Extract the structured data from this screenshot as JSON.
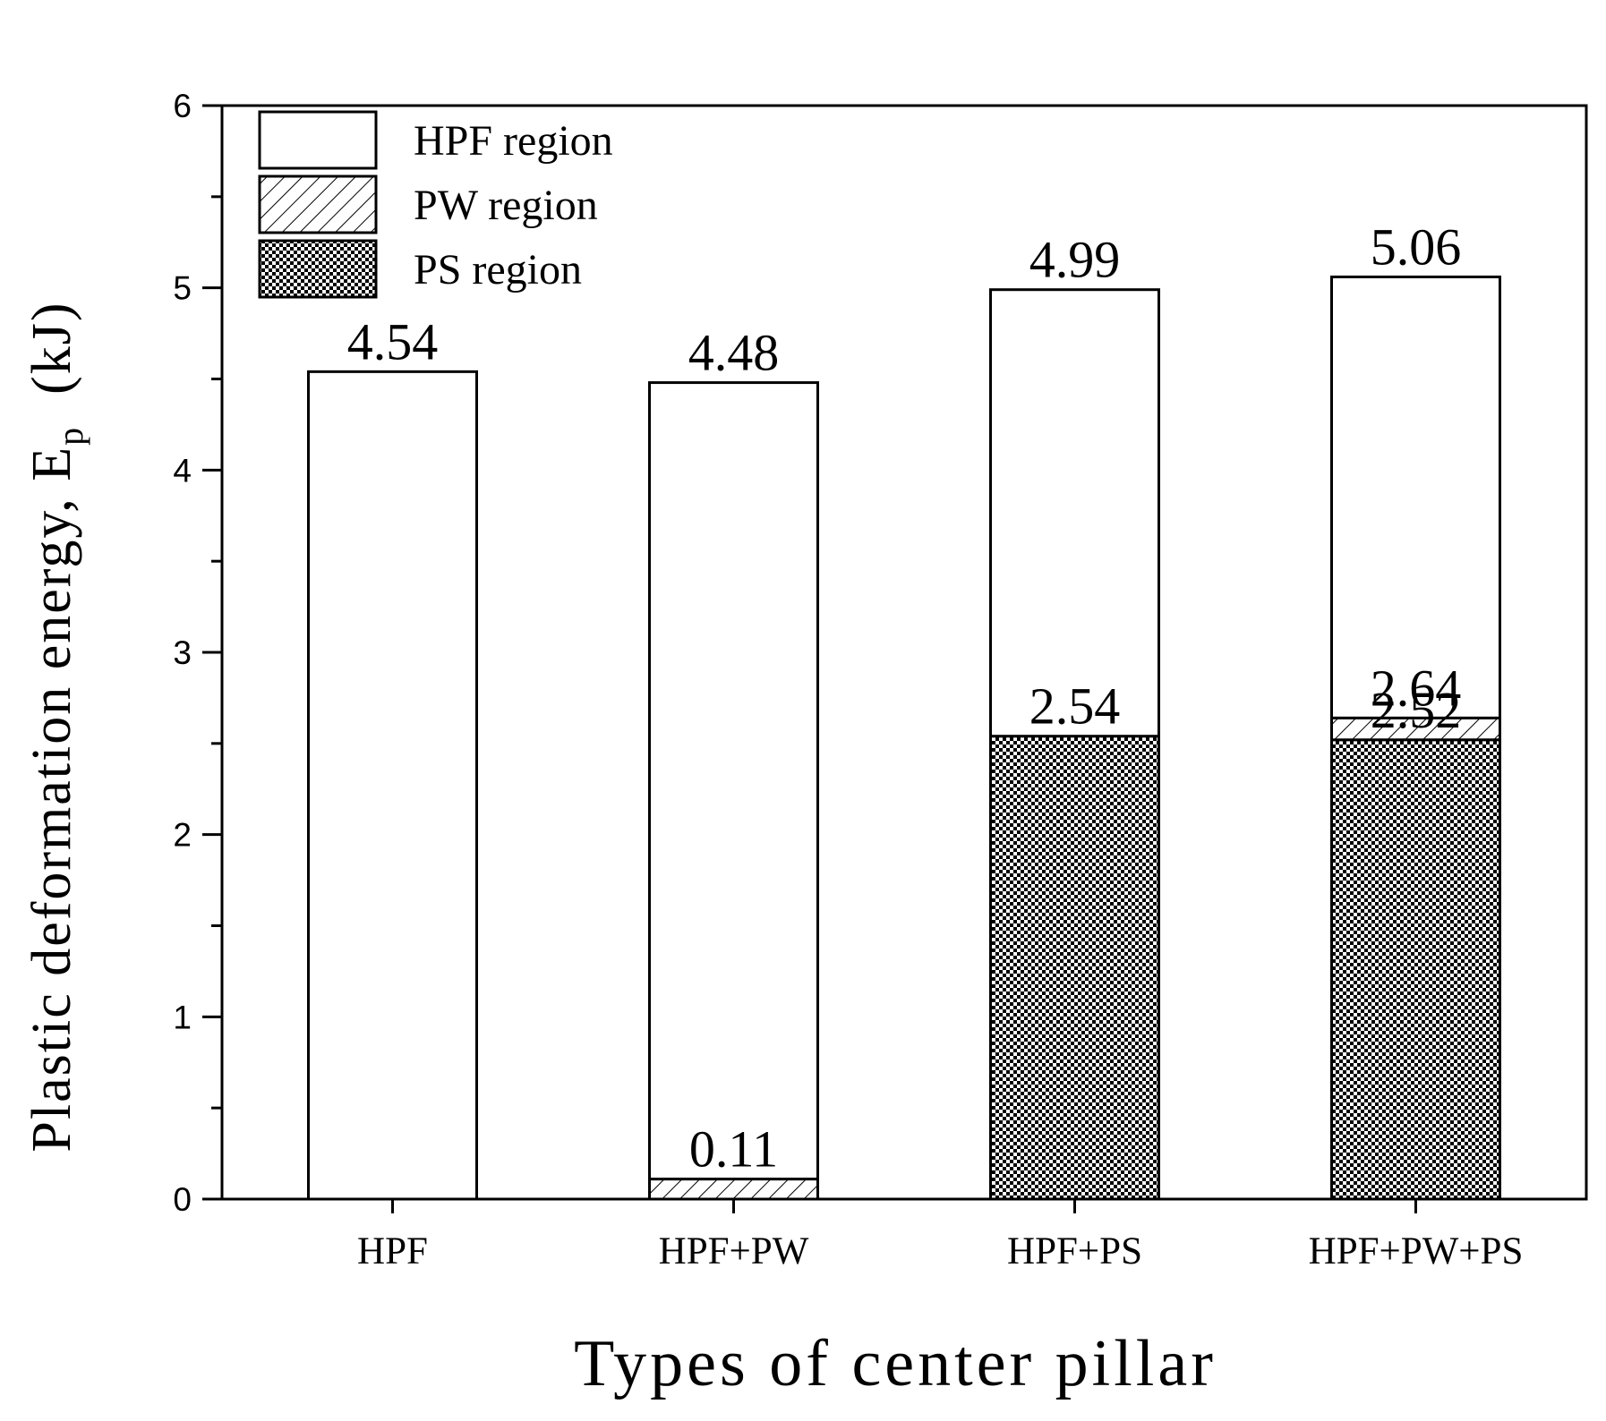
{
  "chart_data": {
    "type": "bar",
    "stacked": true,
    "categories": [
      "HPF",
      "HPF+PW",
      "HPF+PS",
      "HPF+PW+PS"
    ],
    "series": [
      {
        "name": "PS region",
        "values": [
          0,
          0,
          2.54,
          2.52
        ],
        "pattern": "checker"
      },
      {
        "name": "PW region",
        "values": [
          0,
          0.11,
          0,
          0.12
        ],
        "pattern": "hatch"
      },
      {
        "name": "HPF region",
        "values": [
          4.54,
          4.37,
          2.45,
          2.42
        ],
        "pattern": "none"
      }
    ],
    "totals": [
      4.54,
      4.48,
      4.99,
      5.06
    ],
    "data_labels": [
      {
        "category": "HPF",
        "value": 4.54,
        "text": "4.54"
      },
      {
        "category": "HPF+PW",
        "value": 4.48,
        "text": "4.48"
      },
      {
        "category": "HPF+PW",
        "value": 0.11,
        "text": "0.11"
      },
      {
        "category": "HPF+PS",
        "value": 4.99,
        "text": "4.99"
      },
      {
        "category": "HPF+PS",
        "value": 2.54,
        "text": "2.54"
      },
      {
        "category": "HPF+PW+PS",
        "value": 5.06,
        "text": "5.06"
      },
      {
        "category": "HPF+PW+PS",
        "value": 2.64,
        "text": "2.64"
      },
      {
        "category": "HPF+PW+PS",
        "value": 2.52,
        "text": "2.52"
      }
    ],
    "xlabel": "Types of center pillar",
    "ylabel_main": "Plastic deformation energy, E",
    "ylabel_sub": "p",
    "ylabel_unit": "(kJ)",
    "ylim": [
      0,
      6
    ],
    "yticks": [
      "0",
      "1",
      "2",
      "3",
      "4",
      "5",
      "6"
    ],
    "legend_position": "top-left",
    "grid": false
  }
}
